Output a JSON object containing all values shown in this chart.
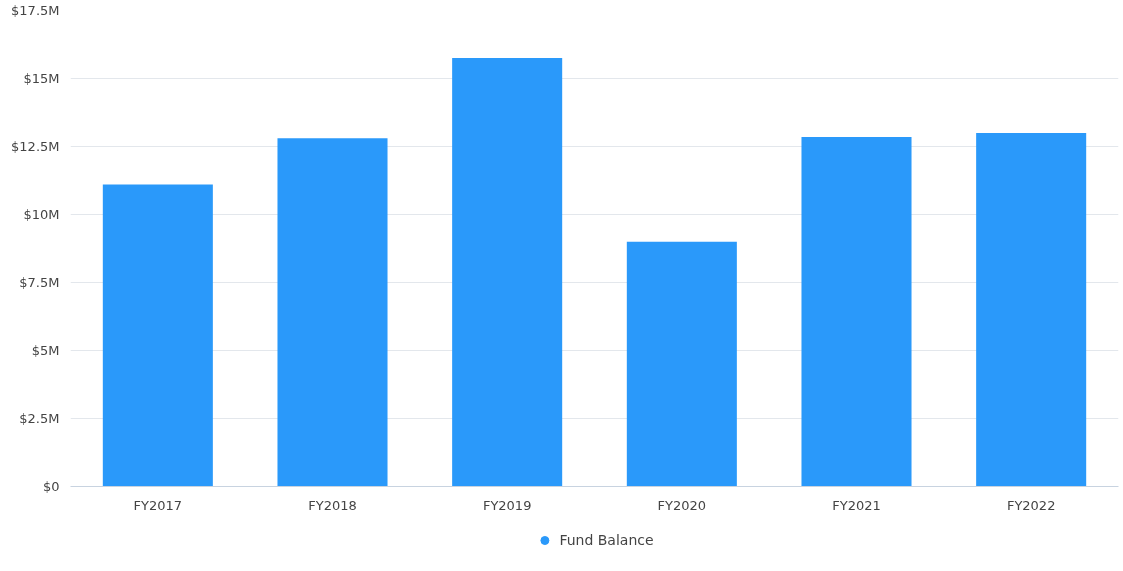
{
  "chart_data": {
    "type": "bar",
    "categories": [
      "FY2017",
      "FY2018",
      "FY2019",
      "FY2020",
      "FY2021",
      "FY2022"
    ],
    "series": [
      {
        "name": "Fund Balance",
        "color": "#2a99fa",
        "values": [
          11.1,
          12.8,
          15.75,
          9.0,
          12.85,
          13.0
        ]
      }
    ],
    "ylim": [
      0,
      17.5
    ],
    "yticks": [
      {
        "value": 0,
        "label": "$0"
      },
      {
        "value": 2.5,
        "label": "$2.5M"
      },
      {
        "value": 5,
        "label": "$5M"
      },
      {
        "value": 7.5,
        "label": "$7.5M"
      },
      {
        "value": 10,
        "label": "$10M"
      },
      {
        "value": 12.5,
        "label": "$12.5M"
      },
      {
        "value": 15,
        "label": "$15M"
      },
      {
        "value": 17.5,
        "label": "$17.5M"
      }
    ],
    "grid": "y",
    "legend": "bottom"
  }
}
